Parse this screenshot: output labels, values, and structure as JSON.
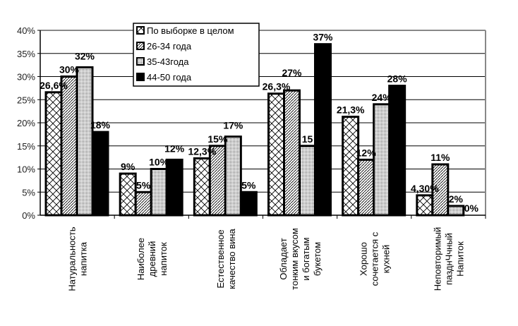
{
  "chart_data": {
    "type": "bar",
    "title": "",
    "xlabel": "",
    "ylabel": "",
    "ylim": [
      0,
      40
    ],
    "yticks": [
      "0%",
      "5%",
      "10%",
      "15%",
      "20%",
      "25%",
      "30%",
      "35%",
      "40%"
    ],
    "grid": true,
    "legend_position": "top-center",
    "categories": [
      [
        "Натуральность",
        "напитка"
      ],
      [
        "Наиболее",
        "древний",
        "напиток"
      ],
      [
        "Естественное",
        "качество вина"
      ],
      [
        "Обладает",
        "тонким вкусом",
        "и богатым",
        "букетом"
      ],
      [
        "Хорошо",
        "сочетается с",
        "кухней"
      ],
      [
        "Неповторимый",
        "пазднЧчный",
        "Напиток"
      ]
    ],
    "series": [
      {
        "name": "По выборке в целом",
        "pattern": "crosshatch",
        "values": [
          26.6,
          9,
          12.3,
          26.3,
          21.3,
          4.3
        ],
        "labels": [
          "26,6%",
          "9%",
          "12,3%",
          "26,3%",
          "21,3%",
          "4,30%"
        ]
      },
      {
        "name": "26-34 года",
        "pattern": "diagonal",
        "values": [
          30,
          5,
          15,
          27,
          12,
          11
        ],
        "labels": [
          "30%",
          "5%",
          "15%",
          "27%",
          "12%",
          "11%"
        ]
      },
      {
        "name": "35-43года",
        "pattern": "dots",
        "values": [
          32,
          10,
          17,
          15,
          24,
          2
        ],
        "labels": [
          "32%",
          "10%",
          "17%",
          "15",
          "24%",
          "2%"
        ]
      },
      {
        "name": "44-50 года",
        "pattern": "solid",
        "values": [
          18,
          12,
          5,
          37,
          28,
          0
        ],
        "labels": [
          "18%",
          "12%",
          "5%",
          "37%",
          "28%",
          "0%"
        ]
      }
    ]
  }
}
